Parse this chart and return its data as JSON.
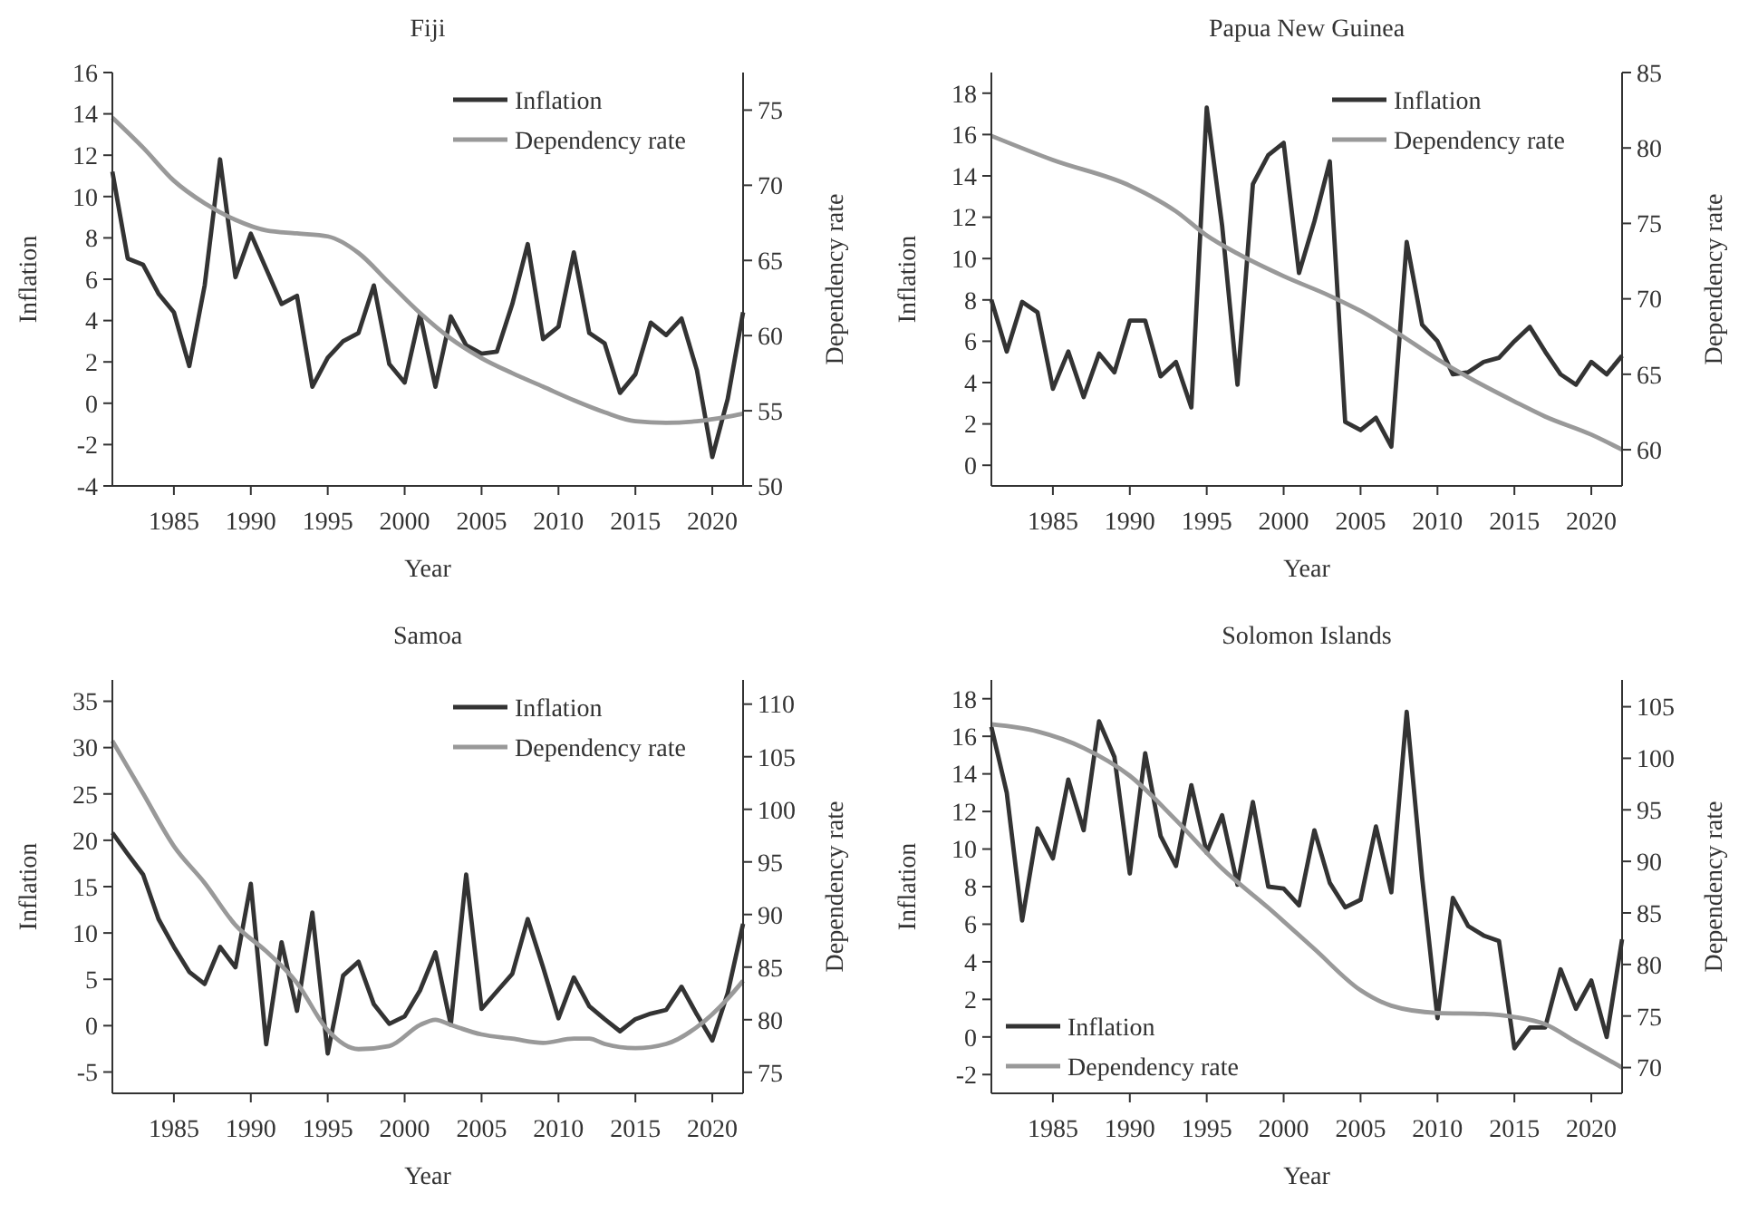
{
  "chart_data": [
    {
      "type": "line",
      "title": "Fiji",
      "xlabel": "Year",
      "ylabel": "Inflation",
      "y2label": "Dependency rate",
      "legend": "top right",
      "xlim": [
        1981,
        2022
      ],
      "xticks": [
        1985,
        1990,
        1995,
        2000,
        2005,
        2010,
        2015,
        2020
      ],
      "ylim": [
        -4,
        16
      ],
      "yticks": [
        -4,
        -2,
        0,
        2,
        4,
        6,
        8,
        10,
        12,
        14,
        16
      ],
      "y2lim": [
        50,
        77.5
      ],
      "y2ticks": [
        50,
        55,
        60,
        65,
        70,
        75
      ],
      "x": [
        1981,
        1982,
        1983,
        1984,
        1985,
        1986,
        1987,
        1988,
        1989,
        1990,
        1991,
        1992,
        1993,
        1994,
        1995,
        1996,
        1997,
        1998,
        1999,
        2000,
        2001,
        2002,
        2003,
        2004,
        2005,
        2006,
        2007,
        2008,
        2009,
        2010,
        2011,
        2012,
        2013,
        2014,
        2015,
        2016,
        2017,
        2018,
        2019,
        2020,
        2021,
        2022
      ],
      "series": [
        {
          "name": "Inflation",
          "color": "#333333",
          "values": [
            11.2,
            7.0,
            6.7,
            5.3,
            4.4,
            1.8,
            5.7,
            11.8,
            6.1,
            8.2,
            6.5,
            4.8,
            5.2,
            0.8,
            2.2,
            3.0,
            3.4,
            5.7,
            1.9,
            1.0,
            4.3,
            0.8,
            4.2,
            2.8,
            2.4,
            2.5,
            4.8,
            7.7,
            3.1,
            3.7,
            7.3,
            3.4,
            2.9,
            0.5,
            1.4,
            3.9,
            3.3,
            4.1,
            1.6,
            -2.6,
            0.2,
            4.4
          ]
        },
        {
          "name": "Dependency rate",
          "color": "#999999",
          "axis": "y2",
          "x": [
            1981,
            1983,
            1985,
            1987,
            1989,
            1991,
            1993,
            1995,
            1997,
            1999,
            2001,
            2003,
            2005,
            2007,
            2009,
            2011,
            2013,
            2015,
            2017,
            2019,
            2021,
            2022
          ],
          "values": [
            74.5,
            72.5,
            70.3,
            68.8,
            67.7,
            67.0,
            66.8,
            66.6,
            65.5,
            63.5,
            61.5,
            59.8,
            58.5,
            57.5,
            56.6,
            55.7,
            54.9,
            54.3,
            54.2,
            54.3,
            54.6,
            54.8
          ]
        }
      ]
    },
    {
      "type": "line",
      "title": "Papua New Guinea",
      "xlabel": "Year",
      "ylabel": "Inflation",
      "y2label": "Dependency rate",
      "legend": "top right",
      "xlim": [
        1981,
        2022
      ],
      "xticks": [
        1985,
        1990,
        1995,
        2000,
        2005,
        2010,
        2015,
        2020
      ],
      "ylim": [
        -1,
        19
      ],
      "yticks": [
        0,
        2,
        4,
        6,
        8,
        10,
        12,
        14,
        16,
        18
      ],
      "y2lim": [
        57.6,
        85
      ],
      "y2ticks": [
        60,
        65,
        70,
        75,
        80,
        85
      ],
      "x": [
        1981,
        1982,
        1983,
        1984,
        1985,
        1986,
        1987,
        1988,
        1989,
        1990,
        1991,
        1992,
        1993,
        1994,
        1995,
        1996,
        1997,
        1998,
        1999,
        2000,
        2001,
        2002,
        2003,
        2004,
        2005,
        2006,
        2007,
        2008,
        2009,
        2010,
        2011,
        2012,
        2013,
        2014,
        2015,
        2016,
        2017,
        2018,
        2019,
        2020,
        2021,
        2022
      ],
      "series": [
        {
          "name": "Inflation",
          "color": "#333333",
          "values": [
            8.0,
            5.5,
            7.9,
            7.4,
            3.7,
            5.5,
            3.3,
            5.4,
            4.5,
            7.0,
            7.0,
            4.3,
            5.0,
            2.8,
            17.3,
            11.6,
            3.9,
            13.6,
            15.0,
            15.6,
            9.3,
            11.8,
            14.7,
            2.1,
            1.7,
            2.3,
            0.9,
            10.8,
            6.8,
            6.0,
            4.4,
            4.5,
            5.0,
            5.2,
            6.0,
            6.7,
            5.5,
            4.4,
            3.9,
            5.0,
            4.4,
            5.3
          ]
        },
        {
          "name": "Dependency rate",
          "color": "#999999",
          "axis": "y2",
          "x": [
            1981,
            1985,
            1990,
            1991,
            1993,
            1995,
            1997,
            2000,
            2003,
            2005,
            2007,
            2010,
            2012,
            2015,
            2017,
            2020,
            2022
          ],
          "values": [
            80.8,
            79.2,
            77.5,
            77.0,
            75.8,
            74.2,
            73.0,
            71.5,
            70.2,
            69.2,
            68.0,
            66.0,
            64.8,
            63.2,
            62.2,
            61.0,
            60.0
          ]
        }
      ]
    },
    {
      "type": "line",
      "title": "Samoa",
      "xlabel": "Year",
      "ylabel": "Inflation",
      "y2label": "Dependency rate",
      "legend": "top right",
      "xlim": [
        1981,
        2022
      ],
      "xticks": [
        1985,
        1990,
        1995,
        2000,
        2005,
        2010,
        2015,
        2020
      ],
      "ylim": [
        -7.3,
        37.3
      ],
      "yticks": [
        -5,
        0,
        5,
        10,
        15,
        20,
        25,
        30,
        35
      ],
      "y2lim": [
        73,
        112.3
      ],
      "y2ticks": [
        75,
        80,
        85,
        90,
        95,
        100,
        105,
        110
      ],
      "x": [
        1981,
        1982,
        1983,
        1984,
        1985,
        1986,
        1987,
        1988,
        1989,
        1990,
        1991,
        1992,
        1993,
        1994,
        1995,
        1996,
        1997,
        1998,
        1999,
        2000,
        2001,
        2002,
        2003,
        2004,
        2005,
        2006,
        2007,
        2008,
        2009,
        2010,
        2011,
        2012,
        2013,
        2014,
        2015,
        2016,
        2017,
        2018,
        2019,
        2020,
        2021,
        2022
      ],
      "series": [
        {
          "name": "Inflation",
          "color": "#333333",
          "values": [
            20.8,
            18.5,
            16.3,
            11.5,
            8.5,
            5.8,
            4.5,
            8.5,
            6.3,
            15.3,
            -2.0,
            9.0,
            1.6,
            12.2,
            -3.0,
            5.4,
            6.9,
            2.3,
            0.2,
            1.0,
            3.8,
            7.9,
            0.1,
            16.3,
            1.8,
            3.7,
            5.6,
            11.5,
            6.3,
            0.8,
            5.2,
            2.1,
            0.7,
            -0.6,
            0.7,
            1.3,
            1.7,
            4.2,
            1.2,
            -1.6,
            3.5,
            11.0
          ]
        },
        {
          "name": "Dependency rate",
          "color": "#999999",
          "axis": "y2",
          "x": [
            1981,
            1983,
            1985,
            1987,
            1989,
            1991,
            1993,
            1995,
            1997,
            1999,
            2001,
            2002,
            2003,
            2005,
            2007,
            2009,
            2011,
            2012,
            2013,
            2015,
            2017,
            2019,
            2021,
            2022
          ],
          "values": [
            106.5,
            101.5,
            96.5,
            93.0,
            89.0,
            86.5,
            83.5,
            79.0,
            77.2,
            77.5,
            79.5,
            80.0,
            79.5,
            78.6,
            78.2,
            77.8,
            78.2,
            78.2,
            77.7,
            77.3,
            77.7,
            79.3,
            82.0,
            83.7
          ]
        }
      ]
    },
    {
      "type": "line",
      "title": "Solomon Islands",
      "xlabel": "Year",
      "ylabel": "Inflation",
      "y2label": "Dependency rate",
      "legend": "bottom left",
      "xlim": [
        1981,
        2022
      ],
      "xticks": [
        1985,
        1990,
        1995,
        2000,
        2005,
        2010,
        2015,
        2020
      ],
      "ylim": [
        -3,
        19
      ],
      "yticks": [
        -2,
        0,
        2,
        4,
        6,
        8,
        10,
        12,
        14,
        16,
        18
      ],
      "y2lim": [
        67.5,
        107.6
      ],
      "y2ticks": [
        70,
        75,
        80,
        85,
        90,
        95,
        100,
        105
      ],
      "x": [
        1981,
        1982,
        1983,
        1984,
        1985,
        1986,
        1987,
        1988,
        1989,
        1990,
        1991,
        1992,
        1993,
        1994,
        1995,
        1996,
        1997,
        1998,
        1999,
        2000,
        2001,
        2002,
        2003,
        2004,
        2005,
        2006,
        2007,
        2008,
        2009,
        2010,
        2011,
        2012,
        2013,
        2014,
        2015,
        2016,
        2017,
        2018,
        2019,
        2020,
        2021,
        2022
      ],
      "series": [
        {
          "name": "Inflation",
          "color": "#333333",
          "values": [
            16.5,
            13.0,
            6.2,
            11.1,
            9.5,
            13.7,
            11.0,
            16.8,
            14.9,
            8.7,
            15.1,
            10.7,
            9.1,
            13.4,
            9.8,
            11.8,
            8.1,
            12.5,
            8.0,
            7.9,
            7.0,
            11.0,
            8.2,
            6.9,
            7.3,
            11.2,
            7.7,
            17.3,
            8.5,
            1.0,
            7.4,
            5.9,
            5.4,
            5.1,
            -0.6,
            0.5,
            0.5,
            3.6,
            1.5,
            3.0,
            0.0,
            5.2
          ]
        },
        {
          "name": "Dependency rate",
          "color": "#999999",
          "axis": "y2",
          "x": [
            1981,
            1984,
            1987,
            1990,
            1993,
            1996,
            1999,
            2002,
            2005,
            2007,
            2010,
            2013,
            2015,
            2017,
            2019,
            2022
          ],
          "values": [
            103.3,
            102.6,
            101.0,
            98.3,
            94.0,
            89.3,
            85.5,
            81.5,
            77.5,
            76.0,
            75.3,
            75.2,
            74.9,
            74.2,
            72.5,
            70.0
          ]
        }
      ]
    }
  ]
}
